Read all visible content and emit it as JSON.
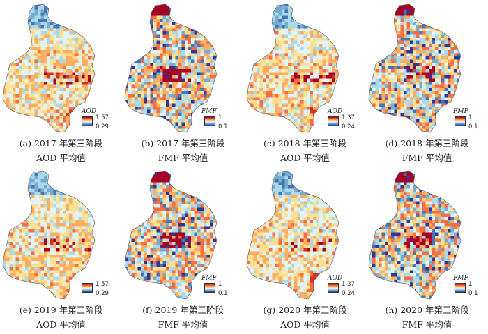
{
  "panels": [
    {
      "letter": "(a)",
      "caption": "2017 年第三阶段",
      "subtitle": "AOD 平均值",
      "legend": {
        "title": "AOD",
        "max": "1.57",
        "min": "0.29"
      },
      "variable": "AOD",
      "year": 2017
    },
    {
      "letter": "(b)",
      "caption": "2017 年第三阶段",
      "subtitle": "FMF 平均值",
      "legend": {
        "title": "FMF",
        "max": "1",
        "min": "0.1"
      },
      "variable": "FMF",
      "year": 2017
    },
    {
      "letter": "(c)",
      "caption": "2018 年第三阶段",
      "subtitle": "AOD 平均值",
      "legend": {
        "title": "AOD",
        "max": "1.37",
        "min": "0.24"
      },
      "variable": "AOD",
      "year": 2018
    },
    {
      "letter": "(d)",
      "caption": "2018 年第三阶段",
      "subtitle": "FMF 平均值",
      "legend": {
        "title": "FMF",
        "max": "1",
        "min": "0.1"
      },
      "variable": "FMF",
      "year": 2018
    },
    {
      "letter": "(e)",
      "caption": "2019 年第三阶段",
      "subtitle": "AOD 平均值",
      "legend": {
        "title": "AOD",
        "max": "1.57",
        "min": "0.29"
      },
      "variable": "AOD",
      "year": 2019
    },
    {
      "letter": "(f)",
      "caption": "2019 年第三阶段",
      "subtitle": "FMF 平均值",
      "legend": {
        "title": "FMF",
        "max": "1",
        "min": "0.1"
      },
      "variable": "FMF",
      "year": 2019
    },
    {
      "letter": "(g)",
      "caption": "2020 年第三阶段",
      "subtitle": "AOD 平均值",
      "legend": {
        "title": "AOD",
        "max": "1.37",
        "min": "0.24"
      },
      "variable": "AOD",
      "year": 2020
    },
    {
      "letter": "(h)",
      "caption": "2020 年第三阶段",
      "subtitle": "FMF 平均值",
      "legend": {
        "title": "FMF",
        "max": "1",
        "min": "0.1"
      },
      "variable": "FMF",
      "year": 2020
    }
  ],
  "colormap": [
    "#313695",
    "#4575b4",
    "#74add1",
    "#abd9e9",
    "#e0f3f8",
    "#fee090",
    "#fdae61",
    "#f46d43",
    "#d73027",
    "#a50026"
  ]
}
